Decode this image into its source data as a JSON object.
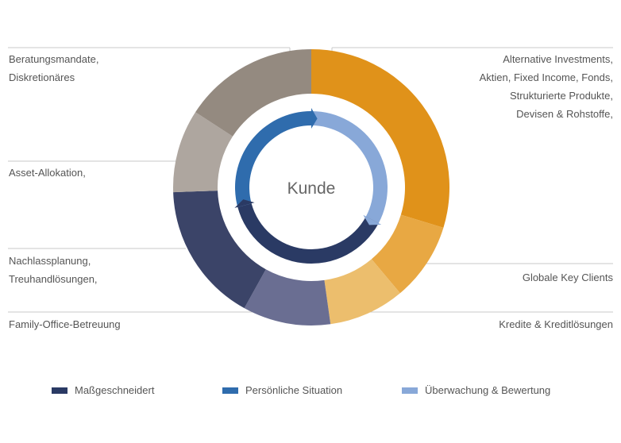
{
  "center_label": "Kunde",
  "labels_left": [
    [
      "Beratungsmandate,",
      "Diskretionäres"
    ],
    [
      "Asset-Allokation,"
    ],
    [
      "Nachlassplanung,",
      "Treuhandlösungen,"
    ],
    [
      "Family-Office-Betreuung"
    ]
  ],
  "labels_right": [
    [
      "Alternative Investments,",
      "Aktien, Fixed Income, Fonds,",
      "Strukturierte Produkte,",
      "Devisen & Rohstoffe,"
    ],
    [
      "Globale Key Clients"
    ],
    [
      "Kredite & Kreditlösungen"
    ]
  ],
  "legend": [
    {
      "label": "Maßgeschneidert",
      "color": "#2a3a64"
    },
    {
      "label": "Persönliche Situation",
      "color": "#2f6cad"
    },
    {
      "label": "Überwachung & Bewertung",
      "color": "#88a8d8"
    }
  ],
  "colors": {
    "orange_main": "#e0921a",
    "orange_mid": "#e8a843",
    "orange_light": "#ecbe6d",
    "taupe_dark": "#948a80",
    "taupe_light": "#aea69f",
    "navy_dark": "#3b4468",
    "navy_mid": "#6a6e92",
    "inner_navy": "#2a3a64",
    "inner_blue": "#2f6cad",
    "inner_light": "#88a8d8",
    "line": "#c8c8c8"
  }
}
